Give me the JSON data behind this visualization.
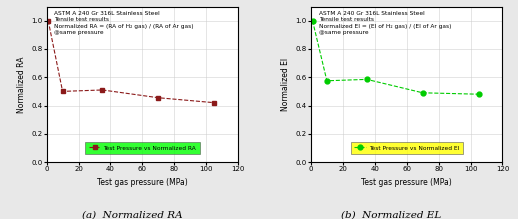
{
  "left_chart": {
    "title_lines": [
      "ASTM A 240 Gr 316L Stainless Steel",
      "Tensile test results",
      "Normalized RA = (RA of H₂ gas) / (RA of Ar gas)",
      "@same pressure"
    ],
    "x_data": [
      1,
      10,
      35,
      70,
      105
    ],
    "y_data": [
      1.0,
      0.5,
      0.51,
      0.455,
      0.42
    ],
    "line_color": "#8B1A1A",
    "marker": "s",
    "markersize": 3.5,
    "ylabel": "Normalized RA",
    "xlabel": "Test gas pressure (MPa)",
    "legend_label": "Test Pressure vs Normalized RA",
    "legend_bg": "#00FF00",
    "xlim": [
      0,
      120
    ],
    "ylim": [
      0,
      1.1
    ],
    "yticks": [
      0.0,
      0.2,
      0.4,
      0.6,
      0.8,
      1.0
    ],
    "subtitle": "(a)  Normalized RA"
  },
  "right_chart": {
    "title_lines": [
      "ASTM A 240 Gr 316L Stainless Steel",
      "Tensile test results",
      "Normalized EI = (EI of H₂ gas) / (EI of Ar gas)",
      "@same pressure"
    ],
    "x_data": [
      1,
      10,
      35,
      70,
      105
    ],
    "y_data": [
      1.0,
      0.575,
      0.585,
      0.49,
      0.48
    ],
    "line_color": "#00CC00",
    "marker": "o",
    "markersize": 3.5,
    "ylabel": "Normalized EI",
    "xlabel": "Test gas pressure (MPa)",
    "legend_label": "Test Pressure vs Normalized EI",
    "legend_bg": "#FFFF00",
    "xlim": [
      0,
      120
    ],
    "ylim": [
      0,
      1.1
    ],
    "yticks": [
      0.0,
      0.2,
      0.4,
      0.6,
      0.8,
      1.0
    ],
    "subtitle": "(b)  Normalized EL"
  },
  "bg_color": "#e8e8e8",
  "plot_bg": "#ffffff",
  "title_fontsize": 4.2,
  "label_fontsize": 5.5,
  "tick_fontsize": 5.0,
  "subtitle_fontsize": 7.5,
  "legend_fontsize": 4.2
}
